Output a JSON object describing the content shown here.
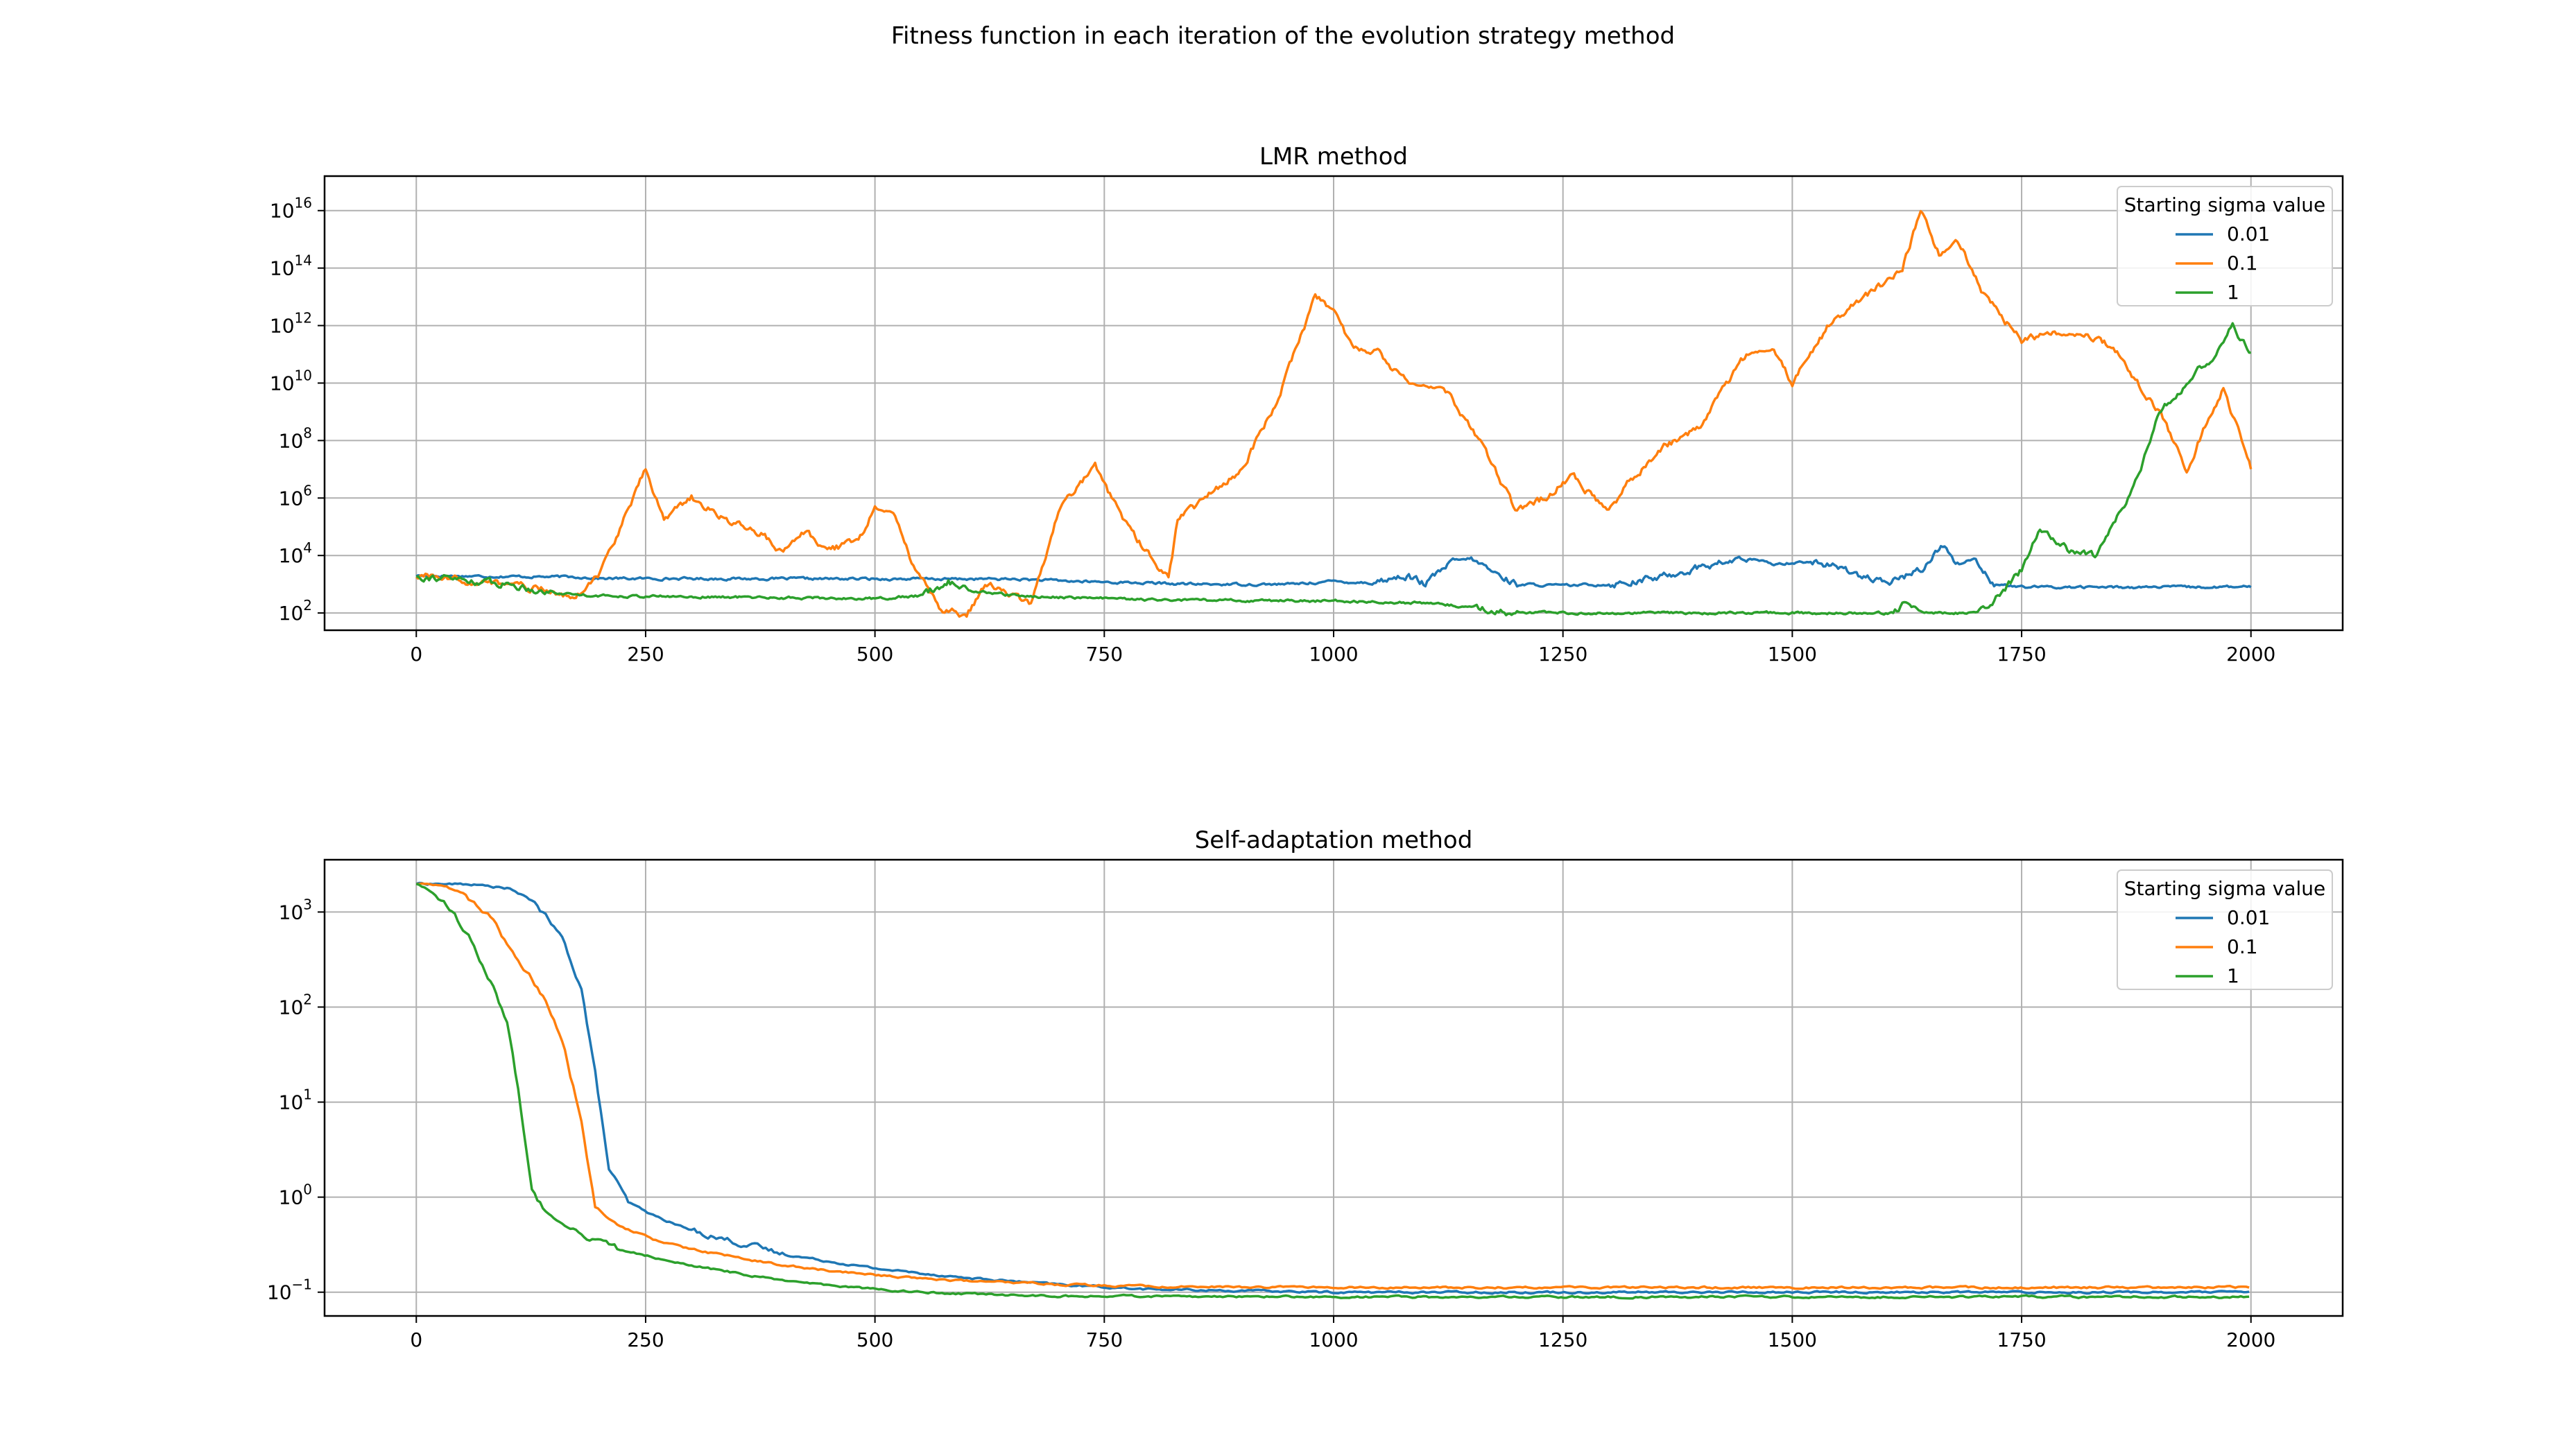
{
  "figure": {
    "suptitle": "Fitness function in each iteration of the evolution strategy method"
  },
  "chart_data": [
    {
      "type": "line",
      "title": "LMR method",
      "xlabel": "",
      "ylabel": "",
      "yscale": "log",
      "xlim": [
        -100,
        2100
      ],
      "ylim_log10": [
        1.4,
        17.2
      ],
      "xticks": [
        0,
        250,
        500,
        750,
        1000,
        1250,
        1500,
        1750,
        2000
      ],
      "xtick_labels": [
        "0",
        "250",
        "500",
        "750",
        "1000",
        "1250",
        "1500",
        "1750",
        "2000"
      ],
      "yticks_log10": [
        2,
        4,
        6,
        8,
        10,
        12,
        14,
        16
      ],
      "ytick_labels": [
        {
          "base": "10",
          "exp": "2"
        },
        {
          "base": "10",
          "exp": "4"
        },
        {
          "base": "10",
          "exp": "6"
        },
        {
          "base": "10",
          "exp": "8"
        },
        {
          "base": "10",
          "exp": "10"
        },
        {
          "base": "10",
          "exp": "12"
        },
        {
          "base": "10",
          "exp": "14"
        },
        {
          "base": "10",
          "exp": "16"
        }
      ],
      "grid": true,
      "legend": {
        "title": "Starting sigma value",
        "placement": "top-right"
      },
      "series": [
        {
          "name": "0.01",
          "color": "#1f77b4",
          "points": [
            [
              0,
              3.3
            ],
            [
              180,
              3.25
            ],
            [
              200,
              3.2
            ],
            [
              650,
              3.18
            ],
            [
              720,
              3.1
            ],
            [
              850,
              3.0
            ],
            [
              950,
              3.0
            ],
            [
              1000,
              3.1
            ],
            [
              1040,
              3.05
            ],
            [
              1080,
              3.3
            ],
            [
              1100,
              3.0
            ],
            [
              1130,
              3.8
            ],
            [
              1150,
              3.9
            ],
            [
              1175,
              3.4
            ],
            [
              1200,
              3.0
            ],
            [
              1250,
              2.95
            ],
            [
              1300,
              3.0
            ],
            [
              1350,
              3.2
            ],
            [
              1400,
              3.6
            ],
            [
              1450,
              3.9
            ],
            [
              1480,
              3.7
            ],
            [
              1520,
              3.8
            ],
            [
              1560,
              3.5
            ],
            [
              1600,
              3.0
            ],
            [
              1640,
              3.5
            ],
            [
              1665,
              4.4
            ],
            [
              1680,
              3.7
            ],
            [
              1700,
              3.9
            ],
            [
              1720,
              3.0
            ],
            [
              1750,
              2.9
            ],
            [
              2000,
              2.9
            ]
          ]
        },
        {
          "name": "0.1",
          "color": "#ff7f0e",
          "points": [
            [
              0,
              3.3
            ],
            [
              100,
              3.0
            ],
            [
              175,
              2.6
            ],
            [
              200,
              3.4
            ],
            [
              230,
              5.5
            ],
            [
              250,
              7.0
            ],
            [
              270,
              5.3
            ],
            [
              300,
              6.0
            ],
            [
              340,
              5.2
            ],
            [
              380,
              4.7
            ],
            [
              400,
              4.0
            ],
            [
              420,
              4.9
            ],
            [
              450,
              4.2
            ],
            [
              480,
              4.5
            ],
            [
              500,
              5.6
            ],
            [
              520,
              5.5
            ],
            [
              540,
              3.8
            ],
            [
              570,
              2.2
            ],
            [
              600,
              1.9
            ],
            [
              620,
              3.0
            ],
            [
              650,
              2.6
            ],
            [
              670,
              2.3
            ],
            [
              700,
              5.5
            ],
            [
              740,
              7.2
            ],
            [
              770,
              5.2
            ],
            [
              800,
              4.0
            ],
            [
              820,
              3.2
            ],
            [
              830,
              5.2
            ],
            [
              860,
              6.0
            ],
            [
              900,
              7.0
            ],
            [
              940,
              9.5
            ],
            [
              980,
              13.0
            ],
            [
              1000,
              12.5
            ],
            [
              1020,
              11.3
            ],
            [
              1050,
              11.0
            ],
            [
              1080,
              10.0
            ],
            [
              1120,
              9.8
            ],
            [
              1150,
              8.5
            ],
            [
              1200,
              5.5
            ],
            [
              1230,
              6.0
            ],
            [
              1260,
              6.8
            ],
            [
              1300,
              5.5
            ],
            [
              1320,
              6.5
            ],
            [
              1360,
              7.8
            ],
            [
              1400,
              8.5
            ],
            [
              1450,
              11.0
            ],
            [
              1480,
              11.2
            ],
            [
              1500,
              10.0
            ],
            [
              1540,
              12.0
            ],
            [
              1580,
              13.0
            ],
            [
              1620,
              14.0
            ],
            [
              1640,
              16.0
            ],
            [
              1660,
              14.5
            ],
            [
              1680,
              15.0
            ],
            [
              1710,
              13.0
            ],
            [
              1750,
              11.5
            ],
            [
              1800,
              11.8
            ],
            [
              1850,
              11.3
            ],
            [
              1880,
              9.8
            ],
            [
              1900,
              9.0
            ],
            [
              1930,
              7.0
            ],
            [
              1950,
              8.5
            ],
            [
              1970,
              9.8
            ],
            [
              1990,
              8.0
            ],
            [
              2000,
              7.1
            ]
          ]
        },
        {
          "name": "1",
          "color": "#2ca02c",
          "points": [
            [
              0,
              3.3
            ],
            [
              100,
              3.0
            ],
            [
              150,
              2.7
            ],
            [
              200,
              2.6
            ],
            [
              500,
              2.5
            ],
            [
              550,
              2.6
            ],
            [
              580,
              3.1
            ],
            [
              600,
              2.8
            ],
            [
              650,
              2.6
            ],
            [
              700,
              2.55
            ],
            [
              760,
              2.5
            ],
            [
              800,
              2.45
            ],
            [
              1000,
              2.42
            ],
            [
              1100,
              2.35
            ],
            [
              1150,
              2.2
            ],
            [
              1200,
              2.0
            ],
            [
              1400,
              2.0
            ],
            [
              1610,
              2.0
            ],
            [
              1620,
              2.3
            ],
            [
              1640,
              2.0
            ],
            [
              1700,
              2.0
            ],
            [
              1720,
              2.4
            ],
            [
              1750,
              3.5
            ],
            [
              1770,
              5.0
            ],
            [
              1800,
              4.2
            ],
            [
              1830,
              4.0
            ],
            [
              1850,
              5.0
            ],
            [
              1880,
              7.0
            ],
            [
              1900,
              9.0
            ],
            [
              1930,
              10.0
            ],
            [
              1960,
              11.0
            ],
            [
              1980,
              12.0
            ],
            [
              2000,
              11.0
            ]
          ]
        }
      ]
    },
    {
      "type": "line",
      "title": "Self-adaptation method",
      "xlabel": "",
      "ylabel": "",
      "yscale": "log",
      "xlim": [
        -100,
        2100
      ],
      "ylim_log10": [
        -1.25,
        3.55
      ],
      "xticks": [
        0,
        250,
        500,
        750,
        1000,
        1250,
        1500,
        1750,
        2000
      ],
      "xtick_labels": [
        "0",
        "250",
        "500",
        "750",
        "1000",
        "1250",
        "1500",
        "1750",
        "2000"
      ],
      "yticks_log10": [
        -1,
        0,
        1,
        2,
        3
      ],
      "ytick_labels": [
        {
          "base": "10",
          "exp": "−1"
        },
        {
          "base": "10",
          "exp": "0"
        },
        {
          "base": "10",
          "exp": "1"
        },
        {
          "base": "10",
          "exp": "2"
        },
        {
          "base": "10",
          "exp": "3"
        }
      ],
      "grid": true,
      "legend": {
        "title": "Starting sigma value",
        "placement": "top-right"
      },
      "series": [
        {
          "name": "0.01",
          "color": "#1f77b4",
          "points": [
            [
              0,
              3.3
            ],
            [
              60,
              3.29
            ],
            [
              100,
              3.25
            ],
            [
              130,
              3.1
            ],
            [
              160,
              2.7
            ],
            [
              180,
              2.2
            ],
            [
              195,
              1.3
            ],
            [
              210,
              0.3
            ],
            [
              230,
              -0.05
            ],
            [
              260,
              -0.2
            ],
            [
              300,
              -0.35
            ],
            [
              400,
              -0.6
            ],
            [
              500,
              -0.75
            ],
            [
              600,
              -0.85
            ],
            [
              700,
              -0.92
            ],
            [
              800,
              -0.97
            ],
            [
              1000,
              -1.0
            ],
            [
              2000,
              -1.0
            ]
          ]
        },
        {
          "name": "0.1",
          "color": "#ff7f0e",
          "points": [
            [
              0,
              3.3
            ],
            [
              30,
              3.28
            ],
            [
              50,
              3.2
            ],
            [
              80,
              2.95
            ],
            [
              110,
              2.5
            ],
            [
              140,
              2.1
            ],
            [
              160,
              1.6
            ],
            [
              180,
              0.8
            ],
            [
              195,
              -0.1
            ],
            [
              220,
              -0.3
            ],
            [
              260,
              -0.45
            ],
            [
              300,
              -0.55
            ],
            [
              400,
              -0.72
            ],
            [
              500,
              -0.82
            ],
            [
              600,
              -0.88
            ],
            [
              700,
              -0.92
            ],
            [
              800,
              -0.94
            ],
            [
              1000,
              -0.95
            ],
            [
              2000,
              -0.95
            ]
          ]
        },
        {
          "name": "1",
          "color": "#2ca02c",
          "points": [
            [
              0,
              3.3
            ],
            [
              20,
              3.2
            ],
            [
              40,
              3.0
            ],
            [
              60,
              2.7
            ],
            [
              80,
              2.3
            ],
            [
              100,
              1.8
            ],
            [
              110,
              1.2
            ],
            [
              125,
              0.1
            ],
            [
              140,
              -0.15
            ],
            [
              170,
              -0.35
            ],
            [
              220,
              -0.55
            ],
            [
              300,
              -0.72
            ],
            [
              400,
              -0.88
            ],
            [
              500,
              -0.97
            ],
            [
              600,
              -1.02
            ],
            [
              700,
              -1.04
            ],
            [
              1000,
              -1.05
            ],
            [
              2000,
              -1.05
            ]
          ]
        }
      ]
    }
  ]
}
